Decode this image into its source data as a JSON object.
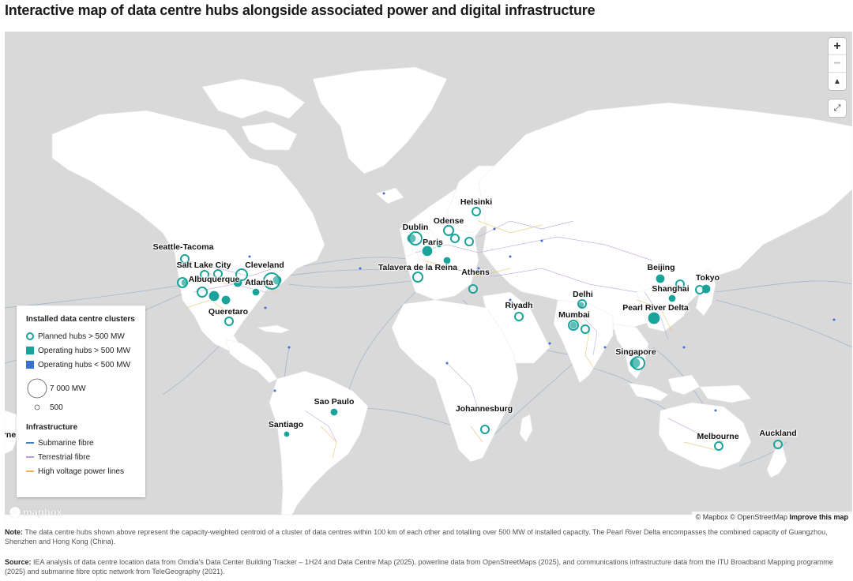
{
  "title": "Interactive map of data centre hubs alongside associated power and digital infrastructure",
  "controls": {
    "zoom_in": "+",
    "zoom_out": "−",
    "compass": "▲",
    "fullscreen": "⤢"
  },
  "legend": {
    "clusters_title": "Installed data centre clusters",
    "planned": "Planned hubs > 500 MW",
    "operating_large": "Operating hubs > 500 MW",
    "operating_small": "Operating hubs < 500 MW",
    "size_large": "7 000 MW",
    "size_small": "500",
    "infra_title": "Infrastructure",
    "submarine": "Submarine fibre",
    "terrestrial": "Terrestrial fibre",
    "power": "High voltage power lines"
  },
  "cities": [
    "Helsinki",
    "Odense",
    "Dublin",
    "Paris",
    "Talavera de la Reina",
    "Athens",
    "Seattle-Tacoma",
    "Salt Lake City",
    "Cleveland",
    "Albuquerque",
    "Atlanta",
    "Queretaro",
    "Riyadh",
    "Delhi",
    "Mumbai",
    "Beijing",
    "Tokyo",
    "Shanghai",
    "Pearl River Delta",
    "Singapore",
    "Sao Paulo",
    "Johannesburg",
    "Santiago",
    "Melbourne",
    "Auckland",
    "rne"
  ],
  "attribution": {
    "mapbox": "© Mapbox",
    "osm": "© OpenStreetMap",
    "improve": "Improve this map"
  },
  "logo": "mapbox",
  "note_label": "Note:",
  "note_text": "The data centre hubs shown above represent the capacity-weighted centroid of a cluster of data centres within 100 km of each other and totalling over 500 MW of installed capacity. The Pearl River Delta encompasses the combined capacity of Guangzhou, Shenzhen and Hong Kong (China).",
  "source_label": "Source:",
  "source_text": "IEA analysis of data centre location data from Omdia's Data Center Building Tracker – 1H24 and Data Centre Map (2025), powerline data from OpenStreetMaps (2025), and communications infrastructure data from the ITU Broadband Mapping programme (2025) and submarine fibre optic network from TeleGeography (2021).",
  "colors": {
    "ocean": "#d9d9d9",
    "land": "#ffffff",
    "hub": "#1aa39a",
    "small_hub": "#3a6fd8",
    "submarine": "#4a7fbf",
    "terrestrial": "#b79ad8",
    "power": "#e8b54a"
  }
}
